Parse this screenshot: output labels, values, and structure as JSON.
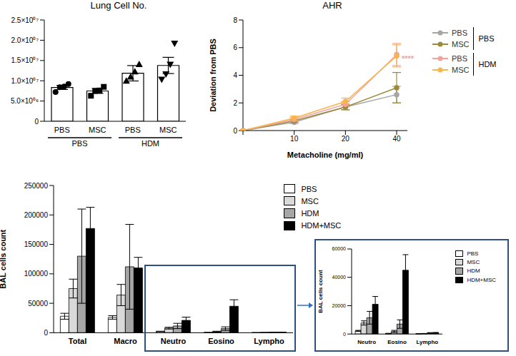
{
  "chart_data": [
    {
      "type": "bar",
      "title": "Lung Cell No.",
      "categories": [
        "PBS",
        "MSC",
        "PBS",
        "MSC"
      ],
      "groups": [
        "PBS",
        "PBS",
        "HDM",
        "HDM"
      ],
      "values": [
        8350000,
        7480000,
        11850000,
        13780000
      ],
      "errors": [
        500000,
        600000,
        1900000,
        2000000
      ],
      "points": [
        {
          "marker": "circle",
          "values": [
            7200000,
            8400000,
            8600000,
            9200000
          ]
        },
        {
          "marker": "square",
          "values": [
            6300000,
            7500000,
            7600000,
            8500000
          ]
        },
        {
          "marker": "triangle",
          "values": [
            10000000,
            11000000,
            12300000,
            14100000
          ]
        },
        {
          "marker": "triangle-down",
          "values": [
            10300000,
            11600000,
            14000000,
            19200000
          ]
        }
      ],
      "color": "#ffffff",
      "ylim": [
        0,
        25000000
      ],
      "yticks": [
        0,
        {
          "value": 5000000,
          "label": "5.0×10⁰⁶"
        },
        {
          "value": 10000000,
          "label": "1.0×10⁰⁷"
        },
        {
          "value": 15000000,
          "label": "1.5×10⁰⁷"
        },
        {
          "value": 20000000,
          "label": "2.0×10⁰⁷"
        },
        {
          "value": 25000000,
          "label": "2.5×10⁰⁷"
        }
      ]
    },
    {
      "type": "line",
      "title": "AHR",
      "x_label": "Metacholine (mg/ml)",
      "y_label": "Deviation from PBS",
      "categories": [
        null,
        "10",
        "20",
        "40"
      ],
      "ylim": [
        0,
        8
      ],
      "yticks": [
        0,
        2,
        4,
        6,
        8
      ],
      "marker": "circle",
      "legend": "right",
      "series": [
        {
          "name": "PBS",
          "group": "PBS",
          "color": "#a6a6a6",
          "values": [
            0,
            0.6,
            1.7,
            2.6
          ],
          "errors": [
            0,
            0.1,
            0.2,
            0.6
          ]
        },
        {
          "name": "MSC",
          "group": "PBS",
          "color": "#9c8a3c",
          "values": [
            0,
            0.7,
            1.7,
            3.1
          ],
          "errors": [
            0,
            0.1,
            0.2,
            1.1
          ]
        },
        {
          "name": "PBS",
          "group": "HDM",
          "color": "#f4a09c",
          "values": [
            0,
            0.8,
            1.9,
            5.5
          ],
          "errors": [
            0,
            0.15,
            0.2,
            0.8
          ]
        },
        {
          "name": "MSC",
          "group": "HDM",
          "color": "#f7b550",
          "values": [
            0,
            0.9,
            2.1,
            5.4
          ],
          "errors": [
            0,
            0.15,
            0.25,
            0.8
          ]
        }
      ],
      "annotations": [
        {
          "text": "****",
          "color": "#f4a09c"
        }
      ]
    },
    {
      "type": "bar",
      "y_label": "BAL cells count",
      "categories": [
        "Total",
        "Macro",
        "Neutro",
        "Eosino",
        "Lympho"
      ],
      "ylim": [
        0,
        250000
      ],
      "yticks": [
        0,
        50000,
        100000,
        150000,
        200000,
        250000
      ],
      "legend": "top right",
      "series": [
        {
          "name": "PBS",
          "color": "#ffffff",
          "values": [
            28000,
            26000,
            2200,
            300,
            100
          ],
          "errors": [
            5000,
            3000,
            400,
            200,
            50
          ]
        },
        {
          "name": "MSC",
          "color": "#d9d9d9",
          "values": [
            75000,
            64000,
            7800,
            1800,
            300
          ],
          "errors": [
            16000,
            18000,
            1500,
            800,
            100
          ]
        },
        {
          "name": "HDM",
          "color": "#a6a6a6",
          "values": [
            130000,
            112000,
            11500,
            7000,
            700
          ],
          "errors": [
            80000,
            72000,
            4500,
            3000,
            300
          ]
        },
        {
          "name": "HDM+MSC",
          "color": "#000000",
          "values": [
            177000,
            110000,
            21000,
            45000,
            900
          ],
          "errors": [
            36000,
            18000,
            5500,
            11000,
            200
          ]
        }
      ]
    },
    {
      "type": "bar",
      "y_label": "BAL cells count",
      "categories": [
        "Neutro",
        "Eosino",
        "Lympho"
      ],
      "ylim": [
        0,
        60000
      ],
      "yticks": [
        0,
        20000,
        40000,
        60000
      ],
      "legend": "right",
      "series": [
        {
          "name": "PBS",
          "color": "#ffffff",
          "values": [
            2200,
            300,
            100
          ],
          "errors": [
            400,
            200,
            50
          ]
        },
        {
          "name": "MSC",
          "color": "#d9d9d9",
          "values": [
            7800,
            1800,
            300
          ],
          "errors": [
            1500,
            800,
            100
          ]
        },
        {
          "name": "HDM",
          "color": "#a6a6a6",
          "values": [
            11500,
            7000,
            700
          ],
          "errors": [
            4500,
            3000,
            300
          ]
        },
        {
          "name": "HDM+MSC",
          "color": "#000000",
          "values": [
            21000,
            45000,
            900
          ],
          "errors": [
            5500,
            11000,
            200
          ]
        }
      ]
    }
  ]
}
